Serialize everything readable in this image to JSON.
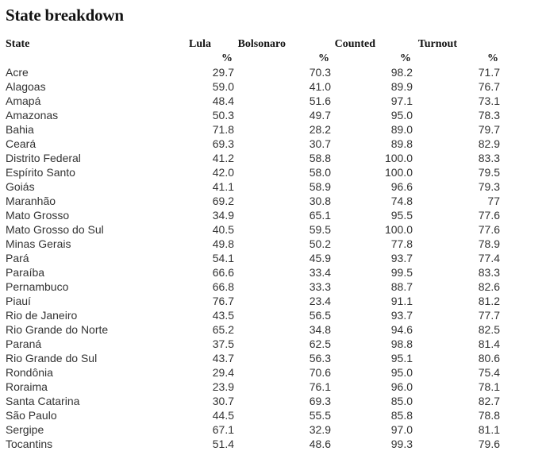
{
  "page": {
    "title": "State breakdown"
  },
  "colors": {
    "heading_text": "#121212",
    "body_text": "#333333",
    "background": "#ffffff"
  },
  "table": {
    "header": {
      "state": "State",
      "lula": "Lula",
      "bolsonaro": "Bolsonaro",
      "counted": "Counted",
      "turnout": "Turnout"
    },
    "percent_sign": "%"
  },
  "chart_data": {
    "type": "table",
    "title": "State breakdown",
    "columns": [
      "State",
      "Lula %",
      "Bolsonaro %",
      "Counted %",
      "Turnout %"
    ],
    "rows": [
      {
        "state": "Acre",
        "lula": "29.7",
        "bolsonaro": "70.3",
        "counted": "98.2",
        "turnout": "71.7"
      },
      {
        "state": "Alagoas",
        "lula": "59.0",
        "bolsonaro": "41.0",
        "counted": "89.9",
        "turnout": "76.7"
      },
      {
        "state": "Amapá",
        "lula": "48.4",
        "bolsonaro": "51.6",
        "counted": "97.1",
        "turnout": "73.1"
      },
      {
        "state": "Amazonas",
        "lula": "50.3",
        "bolsonaro": "49.7",
        "counted": "95.0",
        "turnout": "78.3"
      },
      {
        "state": "Bahia",
        "lula": "71.8",
        "bolsonaro": "28.2",
        "counted": "89.0",
        "turnout": "79.7"
      },
      {
        "state": "Ceará",
        "lula": "69.3",
        "bolsonaro": "30.7",
        "counted": "89.8",
        "turnout": "82.9"
      },
      {
        "state": "Distrito Federal",
        "lula": "41.2",
        "bolsonaro": "58.8",
        "counted": "100.0",
        "turnout": "83.3"
      },
      {
        "state": "Espírito Santo",
        "lula": "42.0",
        "bolsonaro": "58.0",
        "counted": "100.0",
        "turnout": "79.5"
      },
      {
        "state": "Goiás",
        "lula": "41.1",
        "bolsonaro": "58.9",
        "counted": "96.6",
        "turnout": "79.3"
      },
      {
        "state": "Maranhão",
        "lula": "69.2",
        "bolsonaro": "30.8",
        "counted": "74.8",
        "turnout": "77"
      },
      {
        "state": "Mato Grosso",
        "lula": "34.9",
        "bolsonaro": "65.1",
        "counted": "95.5",
        "turnout": "77.6"
      },
      {
        "state": "Mato Grosso do Sul",
        "lula": "40.5",
        "bolsonaro": "59.5",
        "counted": "100.0",
        "turnout": "77.6"
      },
      {
        "state": "Minas Gerais",
        "lula": "49.8",
        "bolsonaro": "50.2",
        "counted": "77.8",
        "turnout": "78.9"
      },
      {
        "state": "Pará",
        "lula": "54.1",
        "bolsonaro": "45.9",
        "counted": "93.7",
        "turnout": "77.4"
      },
      {
        "state": "Paraíba",
        "lula": "66.6",
        "bolsonaro": "33.4",
        "counted": "99.5",
        "turnout": "83.3"
      },
      {
        "state": "Pernambuco",
        "lula": "66.8",
        "bolsonaro": "33.3",
        "counted": "88.7",
        "turnout": "82.6"
      },
      {
        "state": "Piauí",
        "lula": "76.7",
        "bolsonaro": "23.4",
        "counted": "91.1",
        "turnout": "81.2"
      },
      {
        "state": "Rio de Janeiro",
        "lula": "43.5",
        "bolsonaro": "56.5",
        "counted": "93.7",
        "turnout": "77.7"
      },
      {
        "state": "Rio Grande do Norte",
        "lula": "65.2",
        "bolsonaro": "34.8",
        "counted": "94.6",
        "turnout": "82.5"
      },
      {
        "state": "Paraná",
        "lula": "37.5",
        "bolsonaro": "62.5",
        "counted": "98.8",
        "turnout": "81.4"
      },
      {
        "state": "Rio Grande do Sul",
        "lula": "43.7",
        "bolsonaro": "56.3",
        "counted": "95.1",
        "turnout": "80.6"
      },
      {
        "state": "Rondônia",
        "lula": "29.4",
        "bolsonaro": "70.6",
        "counted": "95.0",
        "turnout": "75.4"
      },
      {
        "state": "Roraima",
        "lula": "23.9",
        "bolsonaro": "76.1",
        "counted": "96.0",
        "turnout": "78.1"
      },
      {
        "state": "Santa Catarina",
        "lula": "30.7",
        "bolsonaro": "69.3",
        "counted": "85.0",
        "turnout": "82.7"
      },
      {
        "state": "São Paulo",
        "lula": "44.5",
        "bolsonaro": "55.5",
        "counted": "85.8",
        "turnout": "78.8"
      },
      {
        "state": "Sergipe",
        "lula": "67.1",
        "bolsonaro": "32.9",
        "counted": "97.0",
        "turnout": "81.1"
      },
      {
        "state": "Tocantins",
        "lula": "51.4",
        "bolsonaro": "48.6",
        "counted": "99.3",
        "turnout": "79.6"
      }
    ]
  }
}
